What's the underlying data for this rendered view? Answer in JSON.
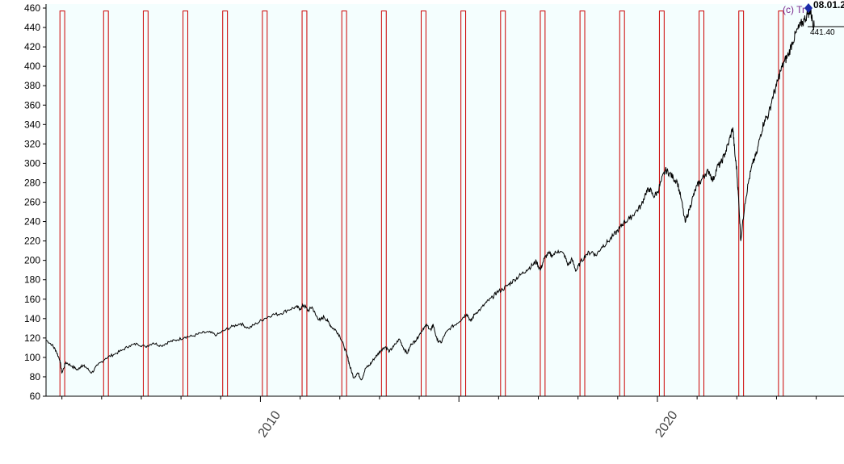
{
  "chart_data": {
    "type": "line",
    "title": "",
    "xlabel": "",
    "ylabel": "",
    "ylim": [
      60,
      460
    ],
    "xlim": [
      2004.6,
      2024.7
    ],
    "y_ticks": [
      60,
      80,
      100,
      120,
      140,
      160,
      180,
      200,
      220,
      240,
      260,
      280,
      300,
      320,
      340,
      360,
      380,
      400,
      420,
      440,
      460
    ],
    "x_tick_labels": [
      {
        "label": "2010",
        "x": 2010.0
      },
      {
        "label": "2020",
        "x": 2020.0
      }
    ],
    "grid": false,
    "watermark": "(c) Tr",
    "last_date_label": "08.01.2",
    "last_value_label": "441.40",
    "colors": {
      "background": "#f4fefe",
      "price_line": "#000000",
      "marker_bars": "#cc0000",
      "last_point_marker": "#1c2aa8",
      "watermark": "#7b2b8f"
    },
    "series": [
      {
        "points": [
          [
            2004.6,
            118
          ],
          [
            2004.75,
            113
          ],
          [
            2004.85,
            107
          ],
          [
            2004.95,
            97
          ],
          [
            2005.0,
            84
          ],
          [
            2005.1,
            95
          ],
          [
            2005.25,
            91
          ],
          [
            2005.4,
            87
          ],
          [
            2005.5,
            92
          ],
          [
            2005.6,
            90
          ],
          [
            2005.75,
            84
          ],
          [
            2005.9,
            92
          ],
          [
            2006.1,
            99
          ],
          [
            2006.3,
            103
          ],
          [
            2006.5,
            107
          ],
          [
            2006.7,
            112
          ],
          [
            2006.9,
            114
          ],
          [
            2007.1,
            111
          ],
          [
            2007.3,
            115
          ],
          [
            2007.5,
            112
          ],
          [
            2007.7,
            116
          ],
          [
            2007.9,
            118
          ],
          [
            2008.1,
            121
          ],
          [
            2008.3,
            122
          ],
          [
            2008.5,
            125
          ],
          [
            2008.7,
            126
          ],
          [
            2008.9,
            123
          ],
          [
            2009.1,
            128
          ],
          [
            2009.3,
            132
          ],
          [
            2009.5,
            135
          ],
          [
            2009.7,
            130
          ],
          [
            2009.9,
            135
          ],
          [
            2010.1,
            140
          ],
          [
            2010.3,
            144
          ],
          [
            2010.5,
            145
          ],
          [
            2010.7,
            149
          ],
          [
            2010.9,
            152
          ],
          [
            2011.0,
            150
          ],
          [
            2011.1,
            154
          ],
          [
            2011.2,
            148
          ],
          [
            2011.3,
            152
          ],
          [
            2011.4,
            143
          ],
          [
            2011.5,
            138
          ],
          [
            2011.6,
            142
          ],
          [
            2011.7,
            137
          ],
          [
            2011.8,
            131
          ],
          [
            2011.9,
            128
          ],
          [
            2012.0,
            122
          ],
          [
            2012.1,
            112
          ],
          [
            2012.2,
            100
          ],
          [
            2012.25,
            91
          ],
          [
            2012.35,
            79
          ],
          [
            2012.45,
            84
          ],
          [
            2012.55,
            77
          ],
          [
            2012.65,
            89
          ],
          [
            2012.75,
            92
          ],
          [
            2012.85,
            98
          ],
          [
            2012.95,
            103
          ],
          [
            2013.05,
            108
          ],
          [
            2013.15,
            111
          ],
          [
            2013.25,
            106
          ],
          [
            2013.35,
            111
          ],
          [
            2013.5,
            119
          ],
          [
            2013.6,
            110
          ],
          [
            2013.7,
            104
          ],
          [
            2013.8,
            114
          ],
          [
            2013.9,
            117
          ],
          [
            2014.0,
            123
          ],
          [
            2014.1,
            130
          ],
          [
            2014.2,
            133
          ],
          [
            2014.3,
            128
          ],
          [
            2014.35,
            134
          ],
          [
            2014.45,
            118
          ],
          [
            2014.55,
            115
          ],
          [
            2014.65,
            124
          ],
          [
            2014.8,
            131
          ],
          [
            2014.95,
            135
          ],
          [
            2015.1,
            141
          ],
          [
            2015.2,
            145
          ],
          [
            2015.3,
            137
          ],
          [
            2015.4,
            145
          ],
          [
            2015.55,
            150
          ],
          [
            2015.7,
            157
          ],
          [
            2015.85,
            162
          ],
          [
            2015.95,
            167
          ],
          [
            2016.1,
            170
          ],
          [
            2016.25,
            175
          ],
          [
            2016.4,
            180
          ],
          [
            2016.55,
            185
          ],
          [
            2016.7,
            190
          ],
          [
            2016.85,
            195
          ],
          [
            2016.95,
            199
          ],
          [
            2017.05,
            190
          ],
          [
            2017.15,
            202
          ],
          [
            2017.25,
            207
          ],
          [
            2017.35,
            205
          ],
          [
            2017.5,
            210
          ],
          [
            2017.65,
            206
          ],
          [
            2017.75,
            195
          ],
          [
            2017.85,
            201
          ],
          [
            2017.95,
            189
          ],
          [
            2018.05,
            197
          ],
          [
            2018.2,
            206
          ],
          [
            2018.35,
            209
          ],
          [
            2018.45,
            205
          ],
          [
            2018.6,
            214
          ],
          [
            2018.75,
            219
          ],
          [
            2018.9,
            226
          ],
          [
            2019.05,
            233
          ],
          [
            2019.15,
            239
          ],
          [
            2019.3,
            243
          ],
          [
            2019.45,
            250
          ],
          [
            2019.6,
            257
          ],
          [
            2019.7,
            269
          ],
          [
            2019.8,
            274
          ],
          [
            2019.9,
            266
          ],
          [
            2020.0,
            270
          ],
          [
            2020.1,
            282
          ],
          [
            2020.2,
            293
          ],
          [
            2020.3,
            290
          ],
          [
            2020.4,
            285
          ],
          [
            2020.5,
            281
          ],
          [
            2020.6,
            263
          ],
          [
            2020.7,
            239
          ],
          [
            2020.8,
            252
          ],
          [
            2020.9,
            266
          ],
          [
            2021.0,
            277
          ],
          [
            2021.1,
            282
          ],
          [
            2021.2,
            289
          ],
          [
            2021.3,
            292
          ],
          [
            2021.4,
            282
          ],
          [
            2021.5,
            296
          ],
          [
            2021.6,
            300
          ],
          [
            2021.7,
            310
          ],
          [
            2021.8,
            322
          ],
          [
            2021.9,
            337
          ],
          [
            2021.95,
            310
          ],
          [
            2022.0,
            292
          ],
          [
            2022.05,
            260
          ],
          [
            2022.1,
            220
          ],
          [
            2022.2,
            258
          ],
          [
            2022.3,
            282
          ],
          [
            2022.4,
            300
          ],
          [
            2022.5,
            310
          ],
          [
            2022.6,
            330
          ],
          [
            2022.7,
            345
          ],
          [
            2022.8,
            350
          ],
          [
            2022.9,
            368
          ],
          [
            2023.0,
            380
          ],
          [
            2023.1,
            395
          ],
          [
            2023.2,
            405
          ],
          [
            2023.3,
            412
          ],
          [
            2023.4,
            425
          ],
          [
            2023.5,
            435
          ],
          [
            2023.6,
            442
          ],
          [
            2023.7,
            448
          ],
          [
            2023.8,
            455
          ],
          [
            2023.85,
            458
          ],
          [
            2023.9,
            448
          ],
          [
            2023.95,
            441
          ]
        ]
      }
    ],
    "marker_bars": {
      "top_value": 457,
      "starts": [
        2004.95,
        2006.05,
        2007.05,
        2008.05,
        2009.05,
        2010.05,
        2011.05,
        2012.05,
        2013.05,
        2014.05,
        2015.05,
        2016.05,
        2017.05,
        2018.05,
        2019.05,
        2020.05,
        2021.05,
        2022.05,
        2023.05
      ],
      "width_years": 0.12
    }
  }
}
